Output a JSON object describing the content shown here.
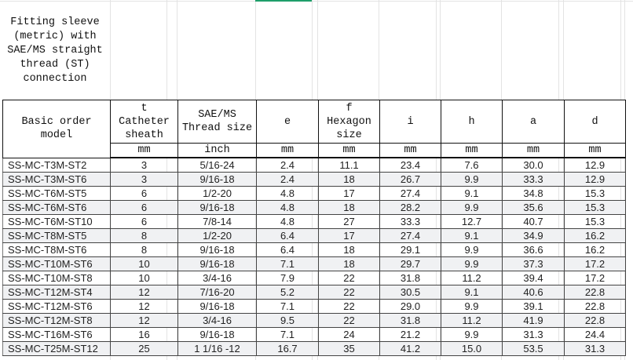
{
  "title": "Fitting sleeve\n(metric) with\nSAE/MS straight\nthread (ST)\nconnection",
  "headers": [
    "Basic order\nmodel",
    "t\nCatheter\nsheath",
    "SAE/MS\nThread size",
    "e",
    "f\nHexagon\nsize",
    "i",
    "h",
    "a",
    "d"
  ],
  "units": [
    "",
    "mm",
    "inch",
    "mm",
    "mm",
    "mm",
    "mm",
    "mm",
    "mm"
  ],
  "rows": [
    [
      "SS-MC-T3M-ST2",
      "3",
      "5/16-24",
      "2.4",
      "11.1",
      "23.4",
      "7.6",
      "30.0",
      "12.9"
    ],
    [
      "SS-MC-T3M-ST6",
      "3",
      "9/16-18",
      "2.4",
      "18",
      "26.7",
      "9.9",
      "33.3",
      "12.9"
    ],
    [
      "SS-MC-T6M-ST5",
      "6",
      "1/2-20",
      "4.8",
      "17",
      "27.4",
      "9.1",
      "34.8",
      "15.3"
    ],
    [
      "SS-MC-T6M-ST6",
      "6",
      "9/16-18",
      "4.8",
      "18",
      "28.2",
      "9.9",
      "35.6",
      "15.3"
    ],
    [
      "SS-MC-T6M-ST10",
      "6",
      "7/8-14",
      "4.8",
      "27",
      "33.3",
      "12.7",
      "40.7",
      "15.3"
    ],
    [
      "SS-MC-T8M-ST5",
      "8",
      "1/2-20",
      "6.4",
      "17",
      "27.4",
      "9.1",
      "34.9",
      "16.2"
    ],
    [
      "SS-MC-T8M-ST6",
      "8",
      "9/16-18",
      "6.4",
      "18",
      "29.1",
      "9.9",
      "36.6",
      "16.2"
    ],
    [
      "SS-MC-T10M-ST6",
      "10",
      "9/16-18",
      "7.1",
      "18",
      "29.7",
      "9.9",
      "37.3",
      "17.2"
    ],
    [
      "SS-MC-T10M-ST8",
      "10",
      "3/4-16",
      "7.9",
      "22",
      "31.8",
      "11.2",
      "39.4",
      "17.2"
    ],
    [
      "SS-MC-T12M-ST4",
      "12",
      "7/16-20",
      "5.2",
      "22",
      "30.5",
      "9.1",
      "40.6",
      "22.8"
    ],
    [
      "SS-MC-T12M-ST6",
      "12",
      "9/16-18",
      "7.1",
      "22",
      "29.0",
      "9.9",
      "39.1",
      "22.8"
    ],
    [
      "SS-MC-T12M-ST8",
      "12",
      "3/4-16",
      "9.5",
      "22",
      "31.8",
      "11.2",
      "41.9",
      "22.8"
    ],
    [
      "SS-MC-T16M-ST6",
      "16",
      "9/16-18",
      "7.1",
      "24",
      "21.2",
      "9.9",
      "31.3",
      "24.4"
    ],
    [
      "SS-MC-T25M-ST12",
      "25",
      "1 1/16 -12",
      "16.7",
      "35",
      "41.2",
      "15.0",
      "53.5",
      "31.3"
    ]
  ],
  "colors": {
    "selection": "#1e9e6a",
    "alt_row": "#f0f1f3"
  }
}
